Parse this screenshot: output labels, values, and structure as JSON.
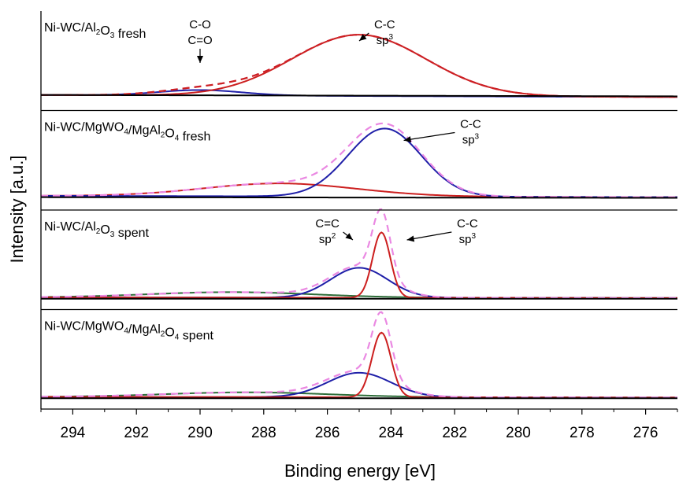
{
  "chart_data": {
    "type": "line",
    "xlabel": "Binding energy [eV]",
    "ylabel": "Intensity [a.u.]",
    "xlim": [
      295,
      275
    ],
    "x_reversed": true,
    "x_ticks": [
      294,
      292,
      290,
      288,
      286,
      284,
      282,
      280,
      278,
      276
    ],
    "colors": {
      "red": "#cc1f1f",
      "blue": "#1f1fa8",
      "pink": "#ea88e2",
      "green": "#2e6e3a",
      "black": "#000000"
    },
    "panels": [
      {
        "label": {
          "pre": "Ni-WC/Al",
          "s1": "2",
          "mid": "O",
          "s2": "3",
          "post": " fresh"
        },
        "series": [
          {
            "color": "blue",
            "dash": false,
            "baseline": 0.06,
            "slope": 0.03,
            "peaks": [
              {
                "center": 290.0,
                "height": 0.08,
                "sigma": 1.3
              }
            ]
          },
          {
            "color": "red",
            "dash": false,
            "baseline": 0.06,
            "slope": 0.03,
            "peaks": [
              {
                "center": 285.0,
                "height": 0.9,
                "sigma": 2.1
              }
            ]
          },
          {
            "color": "pink",
            "dash": true,
            "baseline": 0.06,
            "slope": 0.03,
            "peaks": [
              {
                "center": 290.0,
                "height": 0.08,
                "sigma": 1.3
              },
              {
                "center": 285.0,
                "height": 0.9,
                "sigma": 2.1
              }
            ]
          },
          {
            "color": "red",
            "dash": true,
            "baseline": 0.06,
            "slope": 0.03,
            "peaks": [
              {
                "center": 290.0,
                "height": 0.08,
                "sigma": 1.3
              },
              {
                "center": 285.0,
                "height": 0.9,
                "sigma": 2.1
              }
            ]
          },
          {
            "color": "black",
            "dash": false,
            "baseline": 0.07,
            "slope": 0.02,
            "peaks": []
          }
        ],
        "annotations": [
          {
            "lines": [
              "C-O",
              "C=O"
            ],
            "sup": [
              "",
              ""
            ],
            "x": 290.0,
            "arrow_to": 290.0
          },
          {
            "lines": [
              "C-C",
              "sp"
            ],
            "sup": [
              "",
              "3"
            ],
            "x": 284.2,
            "arrow_to": 285.0
          }
        ]
      },
      {
        "label": {
          "pre": "Ni-WC/MgWO",
          "s1": "4",
          "mid": "/MgAl",
          "s2": "2",
          "post": "O",
          "s3": "4",
          "post2": " fresh"
        },
        "series": [
          {
            "color": "red",
            "dash": false,
            "baseline": 0.05,
            "slope": 0.02,
            "peaks": [
              {
                "center": 287.5,
                "height": 0.19,
                "sigma": 2.4
              }
            ]
          },
          {
            "color": "blue",
            "dash": false,
            "baseline": 0.05,
            "slope": 0.02,
            "peaks": [
              {
                "center": 284.2,
                "height": 1.0,
                "sigma": 1.15
              }
            ]
          },
          {
            "color": "pink",
            "dash": true,
            "baseline": 0.05,
            "slope": 0.02,
            "peaks": [
              {
                "center": 287.5,
                "height": 0.19,
                "sigma": 2.4
              },
              {
                "center": 284.2,
                "height": 1.0,
                "sigma": 1.15
              }
            ]
          },
          {
            "color": "black",
            "dash": false,
            "baseline": 0.04,
            "slope": 0.01,
            "peaks": []
          }
        ],
        "annotations": [
          {
            "lines": [
              "C-C",
              "sp"
            ],
            "sup": [
              "",
              "3"
            ],
            "x": 281.5,
            "arrow_to": 283.6
          }
        ]
      },
      {
        "label": {
          "pre": "Ni-WC/Al",
          "s1": "2",
          "mid": "O",
          "s2": "3",
          "post": " spent"
        },
        "series": [
          {
            "color": "green",
            "dash": false,
            "baseline": 0.03,
            "slope": 0.01,
            "peaks": [
              {
                "center": 289.0,
                "height": 0.08,
                "sigma": 2.6
              }
            ]
          },
          {
            "color": "blue",
            "dash": false,
            "baseline": 0.03,
            "slope": 0.01,
            "peaks": [
              {
                "center": 285.0,
                "height": 0.44,
                "sigma": 0.9
              }
            ]
          },
          {
            "color": "red",
            "dash": false,
            "baseline": 0.03,
            "slope": 0.01,
            "peaks": [
              {
                "center": 284.3,
                "height": 0.96,
                "sigma": 0.28
              }
            ]
          },
          {
            "color": "pink",
            "dash": true,
            "baseline": 0.03,
            "slope": 0.01,
            "peaks": [
              {
                "center": 289.0,
                "height": 0.08,
                "sigma": 2.6
              },
              {
                "center": 285.0,
                "height": 0.44,
                "sigma": 0.9
              },
              {
                "center": 284.3,
                "height": 0.96,
                "sigma": 0.28
              }
            ]
          },
          {
            "color": "black",
            "dash": false,
            "baseline": 0.02,
            "slope": 0.0,
            "peaks": []
          }
        ],
        "annotations": [
          {
            "lines": [
              "C=C",
              "sp"
            ],
            "sup": [
              "",
              "2"
            ],
            "x": 286.0,
            "arrow_to": 285.2
          },
          {
            "lines": [
              "C-C",
              "sp"
            ],
            "sup": [
              "",
              "3"
            ],
            "x": 281.6,
            "arrow_to": 283.5
          }
        ]
      },
      {
        "label": {
          "pre": "Ni-WC/MgWO",
          "s1": "4",
          "mid": "/MgAl",
          "s2": "2",
          "post": "O",
          "s3": "4",
          "post2": " spent"
        },
        "series": [
          {
            "color": "green",
            "dash": false,
            "baseline": 0.03,
            "slope": 0.01,
            "peaks": [
              {
                "center": 288.5,
                "height": 0.07,
                "sigma": 2.6
              }
            ]
          },
          {
            "color": "blue",
            "dash": false,
            "baseline": 0.03,
            "slope": 0.01,
            "peaks": [
              {
                "center": 285.0,
                "height": 0.36,
                "sigma": 1.0
              }
            ]
          },
          {
            "color": "red",
            "dash": false,
            "baseline": 0.03,
            "slope": 0.01,
            "peaks": [
              {
                "center": 284.3,
                "height": 0.95,
                "sigma": 0.3
              }
            ]
          },
          {
            "color": "pink",
            "dash": true,
            "baseline": 0.03,
            "slope": 0.01,
            "peaks": [
              {
                "center": 288.5,
                "height": 0.07,
                "sigma": 2.6
              },
              {
                "center": 285.0,
                "height": 0.36,
                "sigma": 1.0
              },
              {
                "center": 284.3,
                "height": 0.95,
                "sigma": 0.3
              }
            ]
          },
          {
            "color": "black",
            "dash": false,
            "baseline": 0.02,
            "slope": 0.0,
            "peaks": []
          }
        ],
        "annotations": []
      }
    ]
  }
}
